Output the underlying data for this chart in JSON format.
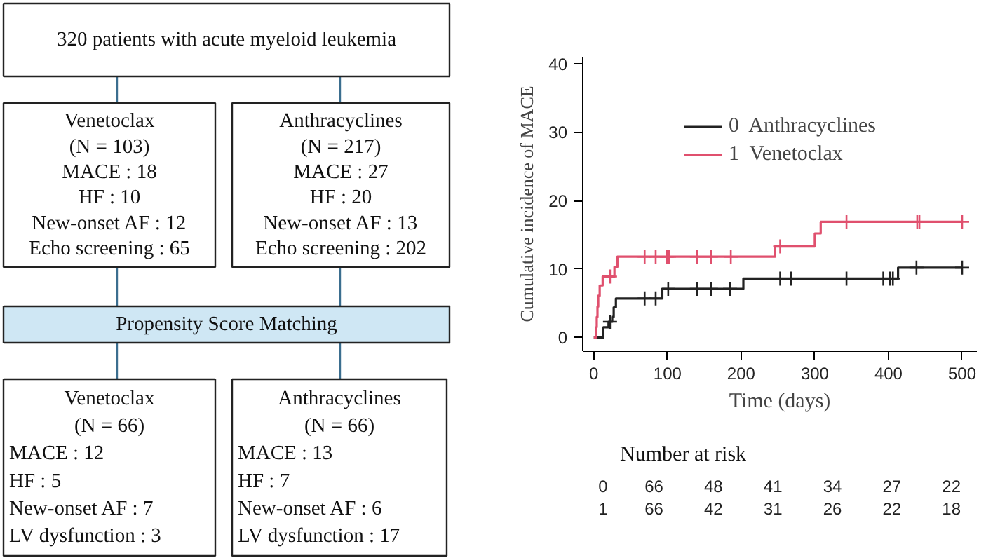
{
  "chart_data": [
    {
      "type": "other",
      "annotations": [
        "320 patients with acute myeloid leukemia",
        "Venetoclax\n(N = 103)\nMACE : 18\nHF : 10\nNew-onset AF : 12\nEcho screening : 65",
        "Anthracyclines\n(N = 217)\nMACE : 27\nHF : 20\nNew-onset AF : 13\nEcho screening : 202",
        "Propensity Score Matching",
        "Venetoclax\n(N = 66)\nMACE : 12\nHF : 5\nNew-onset AF : 7\nLV dysfunction : 3",
        "Anthracyclines\n(N = 66)\nMACE : 13\nHF : 7\nNew-onset AF : 6\nLV dysfunction : 17"
      ]
    },
    {
      "type": "step",
      "xlabel": "Time (days)",
      "ylabel": "Cumulative incidence of MACE",
      "xlim": [
        -15,
        520
      ],
      "ylim": [
        -2,
        41
      ],
      "xticks": [
        0,
        100,
        200,
        300,
        400,
        500
      ],
      "yticks": [
        0,
        10,
        20,
        30,
        40
      ],
      "grid": false,
      "legend": "top",
      "series": [
        {
          "name": "0  Anthracyclines",
          "color": "#222222",
          "x": [
            0,
            13,
            20,
            25,
            27,
            30,
            93,
            203,
            413,
            500
          ],
          "values": [
            0,
            1.5,
            2.3,
            3.0,
            4.4,
            5.7,
            7.1,
            8.6,
            10.2,
            10.2
          ]
        },
        {
          "name": "1  Venetoclax",
          "color": "#e0506e",
          "x": [
            0,
            3,
            4,
            5,
            6,
            8,
            12,
            28,
            32,
            246,
            300,
            308,
            500
          ],
          "values": [
            0,
            1.5,
            3.0,
            4.5,
            6.1,
            7.6,
            8.9,
            10.3,
            11.8,
            13.3,
            15.2,
            16.9,
            16.9
          ]
        },
        {
          "type": "scatter",
          "marker": "cross",
          "color": "#222222",
          "x": [
            22,
            69,
            84,
            101,
            140,
            159,
            185,
            253,
            268,
            343,
            393,
            402,
            406,
            438,
            500
          ],
          "values": [
            2.3,
            5.7,
            5.7,
            7.1,
            7.1,
            7.1,
            7.1,
            8.6,
            8.6,
            8.6,
            8.6,
            8.6,
            8.6,
            10.2,
            10.2
          ]
        },
        {
          "type": "scatter",
          "marker": "cross",
          "color": "#e0506e",
          "x": [
            22,
            69,
            84,
            99,
            102,
            140,
            159,
            186,
            253,
            343,
            439,
            442,
            500
          ],
          "values": [
            8.9,
            11.8,
            11.8,
            11.8,
            11.8,
            11.8,
            11.8,
            11.8,
            13.3,
            16.9,
            16.9,
            16.9,
            16.9
          ]
        }
      ],
      "annotations": [
        "Number at risk",
        "0",
        "66",
        "48",
        "41",
        "34",
        "27",
        "22",
        "1",
        "66",
        "42",
        "31",
        "26",
        "22",
        "18"
      ]
    }
  ]
}
